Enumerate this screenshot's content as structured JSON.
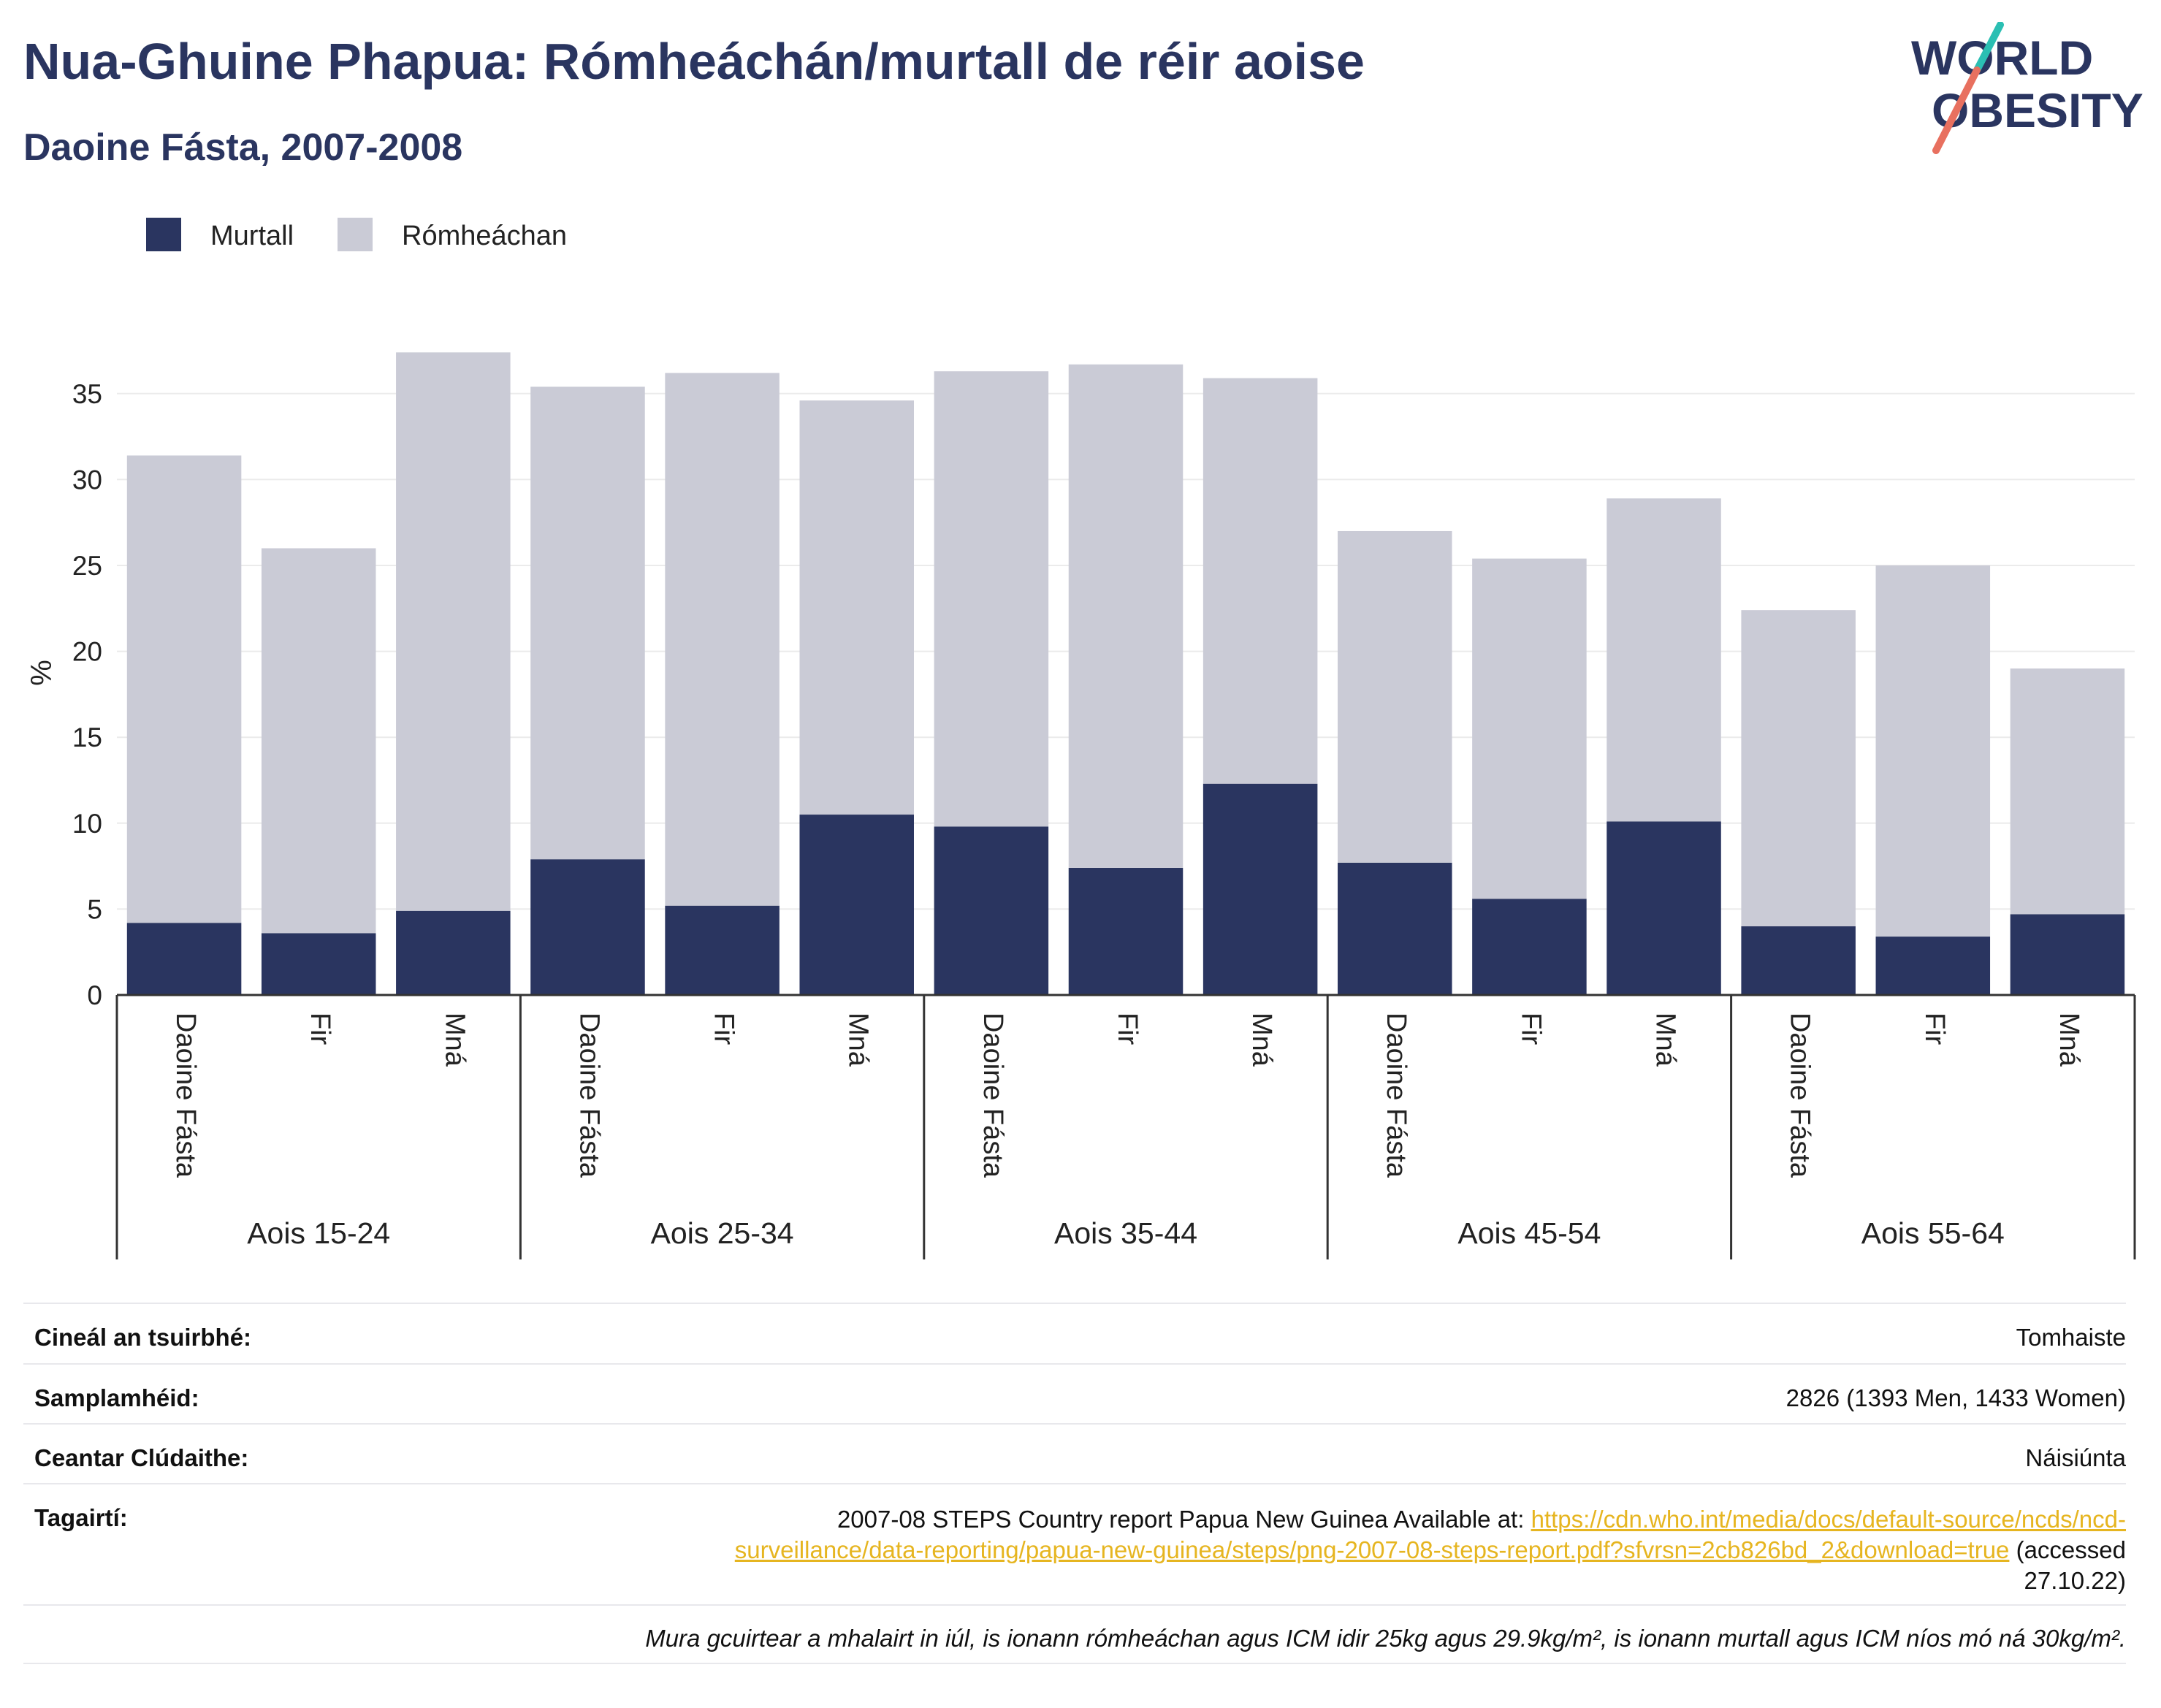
{
  "header": {
    "title": "Nua-Ghuine Phapua: Rómheáchán/murtall de réir aoise",
    "subtitle": "Daoine Fásta, 2007-2008"
  },
  "logo": {
    "line1": "WORLD",
    "line2": "OBESITY",
    "accent_colors": [
      "#2bbfb3",
      "#e8705f"
    ]
  },
  "legend": [
    {
      "label": "Murtall",
      "color": "#2a3560"
    },
    {
      "label": "Rómheáchan",
      "color": "#cacbd6"
    }
  ],
  "chart_data": {
    "type": "bar",
    "stacked": true,
    "ylabel": "%",
    "ylim": [
      0,
      37.5
    ],
    "yticks": [
      0,
      5,
      10,
      15,
      20,
      25,
      30,
      35
    ],
    "grid": true,
    "legend_position": "top-left",
    "groups": [
      "Aois 15-24",
      "Aois 25-34",
      "Aois 35-44",
      "Aois 45-54",
      "Aois 55-64"
    ],
    "subcategories": [
      "Daoine Fásta",
      "Fir",
      "Mná"
    ],
    "series": [
      {
        "name": "Murtall",
        "color": "#2a3560",
        "values": [
          4.2,
          3.6,
          4.9,
          7.9,
          5.2,
          10.5,
          9.8,
          7.4,
          12.3,
          7.7,
          5.6,
          10.1,
          4.0,
          3.4,
          4.7
        ]
      },
      {
        "name": "Rómheáchan",
        "color": "#cacbd6",
        "values": [
          27.2,
          22.4,
          32.5,
          27.5,
          31.0,
          24.1,
          26.5,
          29.3,
          23.6,
          19.3,
          19.8,
          18.8,
          18.4,
          21.6,
          14.3
        ]
      }
    ]
  },
  "info": {
    "survey_type": {
      "label": "Cineál an tsuirbhé:",
      "value": "Tomhaiste"
    },
    "sample_size": {
      "label": "Samplamhéid:",
      "value": "2826 (1393 Men, 1433 Women)"
    },
    "coverage": {
      "label": "Ceantar Clúdaithe:",
      "value": "Náisiúnta"
    },
    "references": {
      "label": "Tagairtí:",
      "text_before": "2007-08 STEPS Country report Papua New Guinea Available at: ",
      "link_line1": "https://cdn.who.int/media/docs/default-source/ncds/ncd-",
      "link_line2": "surveillance/data-reporting/papua-new-guinea/steps/png-2007-08-steps-report.pdf?sfvrsn=2cb826bd_2&download=true",
      "text_after_1": " (accessed",
      "text_after_2": "27.10.22)"
    },
    "note": "Mura gcuirtear a mhalairt in iúl, is ionann rómheáchan agus ICM idir 25kg agus 29.9kg/m², is ionann murtall agus ICM níos mó ná 30kg/m²."
  }
}
